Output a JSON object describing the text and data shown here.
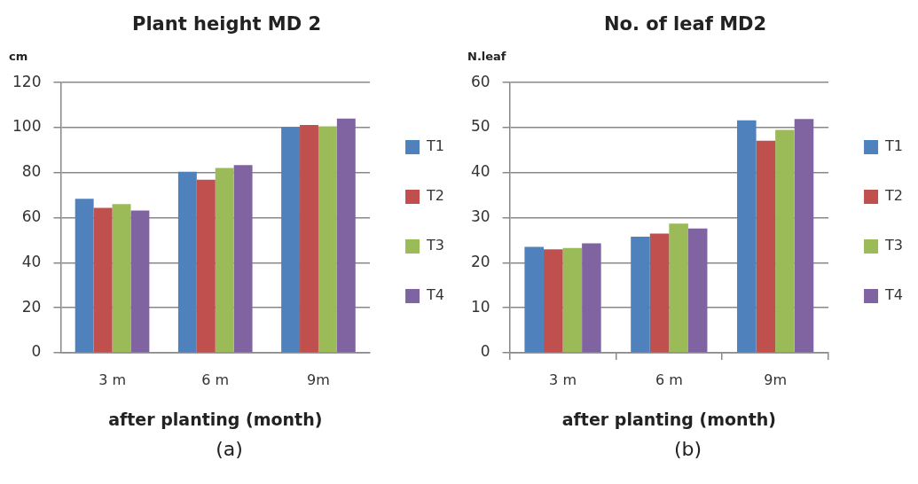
{
  "chart_data": [
    {
      "type": "bar",
      "title": "Plant height MD 2",
      "ylabel": "cm",
      "xlabel": "after planting (month)",
      "categories": [
        "3 m",
        "6 m",
        "9m"
      ],
      "series": [
        {
          "name": "T1",
          "color": "#4f81bd",
          "values": [
            68.4,
            80.4,
            100.3
          ]
        },
        {
          "name": "T2",
          "color": "#c0504d",
          "values": [
            64.4,
            76.9,
            101.2
          ]
        },
        {
          "name": "T3",
          "color": "#9bbb59",
          "values": [
            66,
            82.1,
            100.6
          ]
        },
        {
          "name": "T4",
          "color": "#8064a2",
          "values": [
            63.2,
            83.4,
            104
          ]
        }
      ],
      "ylim": [
        0,
        120
      ],
      "yticks": [
        0,
        20,
        40,
        60,
        80,
        100,
        120
      ],
      "grid": "y",
      "legend": "right",
      "annotations": [
        "(a)"
      ]
    },
    {
      "type": "bar",
      "title": "No. of leaf MD2",
      "ylabel": "N.leaf",
      "xlabel": "after planting (month)",
      "categories": [
        "3 m",
        "6 m",
        "9m"
      ],
      "series": [
        {
          "name": "T1",
          "color": "#4f81bd",
          "values": [
            23.5,
            25.8,
            51.6
          ]
        },
        {
          "name": "T2",
          "color": "#c0504d",
          "values": [
            23,
            26.5,
            47.1
          ]
        },
        {
          "name": "T3",
          "color": "#9bbb59",
          "values": [
            23.3,
            28.7,
            49.5
          ]
        },
        {
          "name": "T4",
          "color": "#8064a2",
          "values": [
            24.3,
            27.6,
            51.9
          ]
        }
      ],
      "ylim": [
        0,
        60
      ],
      "yticks": [
        0,
        10,
        20,
        30,
        40,
        50,
        60
      ],
      "grid": "y",
      "legend": "right",
      "annotations": [
        "(b)"
      ]
    }
  ]
}
